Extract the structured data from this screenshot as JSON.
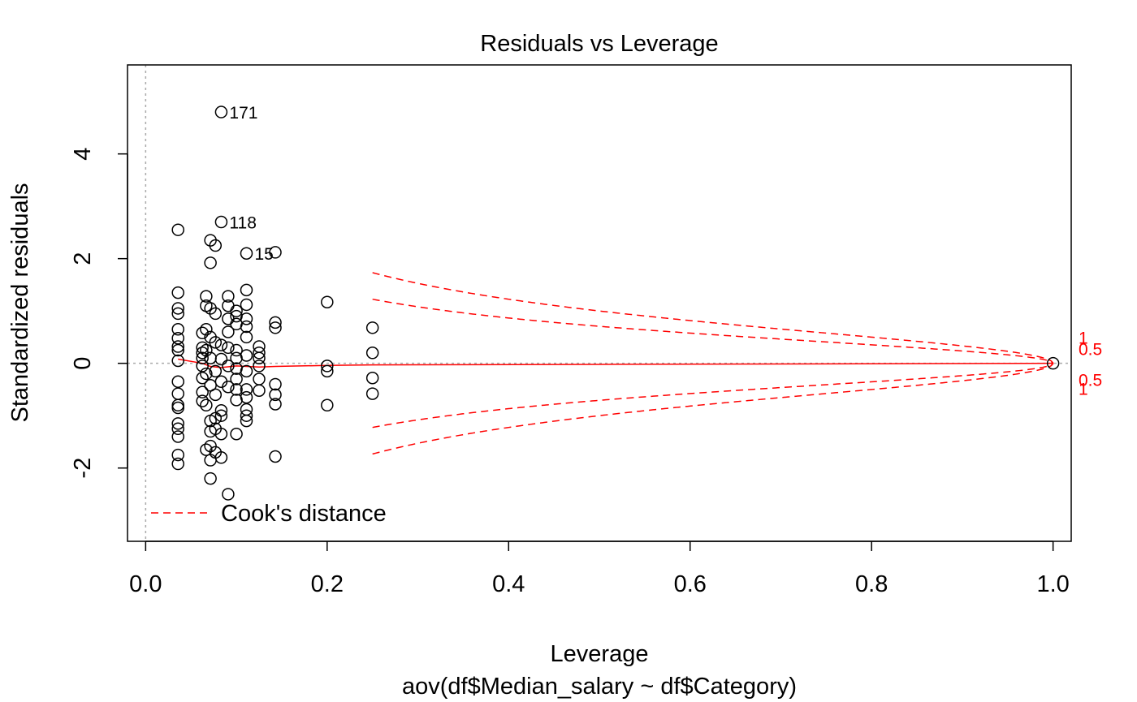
{
  "chart_data": {
    "type": "scatter",
    "title": "Residuals vs Leverage",
    "xlabel": "Leverage",
    "ylabel": "Standardized residuals",
    "subtitle": "aov(df$Median_salary ~ df$Category)",
    "xlim": [
      -0.02,
      1.02
    ],
    "ylim": [
      -3.4,
      5.7
    ],
    "xticks": [
      0.0,
      0.2,
      0.4,
      0.6,
      0.8,
      1.0
    ],
    "xtick_labels": [
      "0.0",
      "0.2",
      "0.4",
      "0.6",
      "0.8",
      "1.0"
    ],
    "yticks": [
      -2,
      0,
      2,
      4
    ],
    "ytick_labels": [
      "-2",
      "0",
      "2",
      "4"
    ],
    "grid": false,
    "reference_lines": {
      "x": 0,
      "y": 0,
      "style": "dotted",
      "color": "#aaaaaa"
    },
    "legend": {
      "position": "bottom-left",
      "entries": [
        {
          "label": "Cook's distance",
          "color": "#ff0000",
          "style": "dashed"
        }
      ]
    },
    "colors": {
      "points": "#000000",
      "smooth": "#ff0000",
      "cooks": "#ff0000"
    },
    "points": [
      [
        0.0357,
        2.55
      ],
      [
        0.0357,
        1.35
      ],
      [
        0.0357,
        1.05
      ],
      [
        0.0357,
        0.95
      ],
      [
        0.0357,
        0.65
      ],
      [
        0.0357,
        0.48
      ],
      [
        0.0357,
        0.32
      ],
      [
        0.0357,
        0.25
      ],
      [
        0.0357,
        0.05
      ],
      [
        0.0357,
        -0.35
      ],
      [
        0.0357,
        -0.58
      ],
      [
        0.0357,
        -0.8
      ],
      [
        0.0357,
        -0.85
      ],
      [
        0.0357,
        -1.15
      ],
      [
        0.0357,
        -1.25
      ],
      [
        0.0357,
        -1.4
      ],
      [
        0.0357,
        -1.75
      ],
      [
        0.0357,
        -1.92
      ],
      [
        0.0625,
        0.58
      ],
      [
        0.0625,
        0.3
      ],
      [
        0.0625,
        0.2
      ],
      [
        0.0625,
        0.1
      ],
      [
        0.0625,
        -0.05
      ],
      [
        0.0625,
        -0.28
      ],
      [
        0.0625,
        -0.55
      ],
      [
        0.0625,
        -0.72
      ],
      [
        0.0667,
        1.28
      ],
      [
        0.0667,
        1.1
      ],
      [
        0.0667,
        0.65
      ],
      [
        0.0667,
        0.25
      ],
      [
        0.0667,
        -0.2
      ],
      [
        0.0667,
        -0.8
      ],
      [
        0.0667,
        -1.65
      ],
      [
        0.0714,
        2.35
      ],
      [
        0.0714,
        1.92
      ],
      [
        0.0714,
        1.05
      ],
      [
        0.0714,
        0.5
      ],
      [
        0.0714,
        0.1
      ],
      [
        0.0714,
        -0.42
      ],
      [
        0.0714,
        -1.1
      ],
      [
        0.0714,
        -1.3
      ],
      [
        0.0714,
        -1.58
      ],
      [
        0.0714,
        -1.85
      ],
      [
        0.0714,
        -2.2
      ],
      [
        0.0769,
        2.25
      ],
      [
        0.0769,
        0.95
      ],
      [
        0.0769,
        0.4
      ],
      [
        0.0769,
        -0.15
      ],
      [
        0.0769,
        -0.6
      ],
      [
        0.0769,
        -1.05
      ],
      [
        0.0769,
        -1.25
      ],
      [
        0.0769,
        -1.7
      ],
      [
        0.0833,
        4.8
      ],
      [
        0.0833,
        2.7
      ],
      [
        0.0833,
        0.35
      ],
      [
        0.0833,
        0.08
      ],
      [
        0.0833,
        -0.35
      ],
      [
        0.0833,
        -0.9
      ],
      [
        0.0833,
        -1.0
      ],
      [
        0.0833,
        -1.35
      ],
      [
        0.0833,
        -1.8
      ],
      [
        0.0909,
        1.28
      ],
      [
        0.0909,
        1.1
      ],
      [
        0.0909,
        0.85
      ],
      [
        0.0909,
        0.6
      ],
      [
        0.0909,
        0.3
      ],
      [
        0.0909,
        -0.05
      ],
      [
        0.0909,
        -0.45
      ],
      [
        0.0909,
        -2.5
      ],
      [
        0.1,
        1.0
      ],
      [
        0.1,
        0.9
      ],
      [
        0.1,
        0.75
      ],
      [
        0.1,
        0.25
      ],
      [
        0.1,
        0.1
      ],
      [
        0.1,
        -0.1
      ],
      [
        0.1,
        -0.3
      ],
      [
        0.1,
        -0.5
      ],
      [
        0.1,
        -0.7
      ],
      [
        0.1,
        -1.35
      ],
      [
        0.1111,
        2.1
      ],
      [
        0.1111,
        1.4
      ],
      [
        0.1111,
        1.12
      ],
      [
        0.1111,
        0.85
      ],
      [
        0.1111,
        0.7
      ],
      [
        0.1111,
        0.5
      ],
      [
        0.1111,
        0.15
      ],
      [
        0.1111,
        -0.15
      ],
      [
        0.1111,
        -0.5
      ],
      [
        0.1111,
        -0.65
      ],
      [
        0.1111,
        -0.88
      ],
      [
        0.1111,
        -1.0
      ],
      [
        0.1111,
        -1.1
      ],
      [
        0.125,
        0.32
      ],
      [
        0.125,
        0.2
      ],
      [
        0.125,
        0.1
      ],
      [
        0.125,
        -0.05
      ],
      [
        0.125,
        -0.3
      ],
      [
        0.125,
        -0.52
      ],
      [
        0.1429,
        2.12
      ],
      [
        0.1429,
        0.78
      ],
      [
        0.1429,
        0.68
      ],
      [
        0.1429,
        -0.4
      ],
      [
        0.1429,
        -0.6
      ],
      [
        0.1429,
        -0.78
      ],
      [
        0.1429,
        -1.78
      ],
      [
        0.2,
        1.17
      ],
      [
        0.2,
        -0.05
      ],
      [
        0.2,
        -0.15
      ],
      [
        0.2,
        -0.8
      ],
      [
        0.25,
        0.68
      ],
      [
        0.25,
        0.2
      ],
      [
        0.25,
        -0.28
      ],
      [
        0.25,
        -0.58
      ],
      [
        1.0,
        0.0
      ]
    ],
    "point_labels": [
      {
        "text": "171",
        "x": 0.0833,
        "y": 4.8
      },
      {
        "text": "118",
        "x": 0.0833,
        "y": 2.7
      },
      {
        "text": "15",
        "x": 0.1111,
        "y": 2.1
      }
    ],
    "smooth_line": {
      "x": [
        0.0357,
        0.0625,
        0.0714,
        0.0833,
        0.1,
        0.125,
        0.1429,
        0.2,
        0.25,
        0.5,
        1.0
      ],
      "y": [
        0.08,
        0.0,
        -0.06,
        -0.08,
        -0.05,
        -0.07,
        -0.06,
        -0.04,
        -0.03,
        -0.02,
        0.0
      ]
    },
    "cooks_contours": [
      {
        "level": 0.5,
        "label": "0.5"
      },
      {
        "level": 1,
        "label": "1"
      }
    ]
  }
}
